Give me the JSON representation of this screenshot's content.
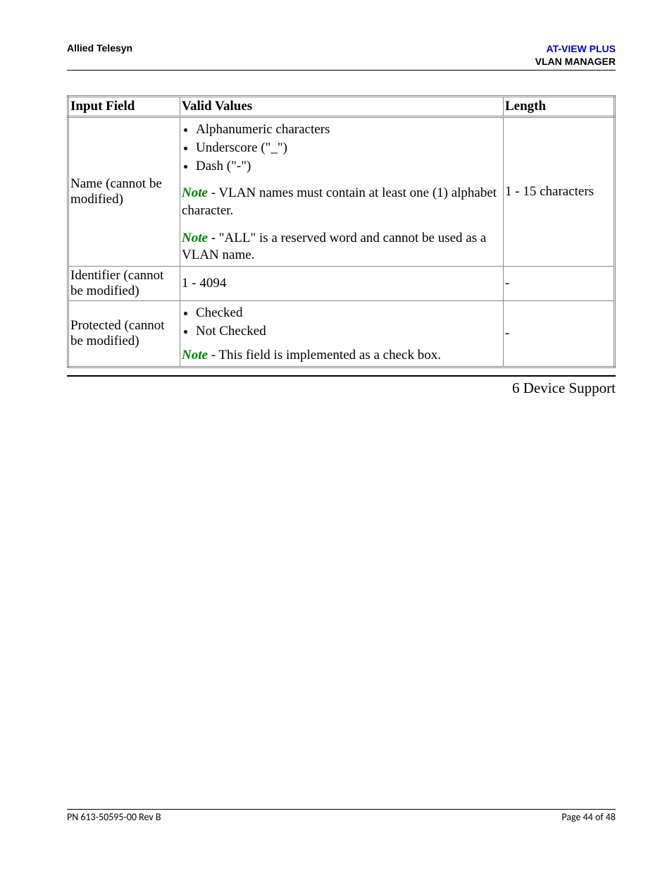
{
  "header": {
    "company": "Allied Telesyn",
    "product_line1": "AT-VIEW PLUS",
    "product_line2": "VLAN MANAGER"
  },
  "table": {
    "columns": [
      "Input Field",
      "Valid Values",
      "Length"
    ],
    "rows": [
      {
        "input_field": "Name (cannot be modified)",
        "bullets": [
          "Alphanumeric characters",
          "Underscore (\"_\")",
          "Dash (\"-\")"
        ],
        "notes": [
          "VLAN names must contain at least one (1) alphabet character.",
          "\"ALL\" is a reserved word and cannot be used as a VLAN name."
        ],
        "length": "1 - 15 characters"
      },
      {
        "input_field": "Identifier (cannot be modified)",
        "plain_value": "1 - 4094",
        "length": "-"
      },
      {
        "input_field": "Protected (cannot be modified)",
        "bullets": [
          "Checked",
          "Not Checked"
        ],
        "notes": [
          "This field is implemented as a check box."
        ],
        "length": "-"
      }
    ],
    "note_label": "Note"
  },
  "section_title": "6 Device Support",
  "footer": {
    "left": "PN 613-50595-00 Rev B",
    "right": "Page 44 of 48"
  },
  "colors": {
    "brand_blue": "#0000cc",
    "note_green": "#008000",
    "border": "#888888"
  }
}
